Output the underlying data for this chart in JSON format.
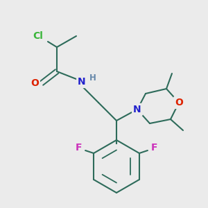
{
  "bg_color": "#ebebeb",
  "bond_color": "#2d6b5a",
  "atom_colors": {
    "Cl": "#3ab53a",
    "O": "#dd2200",
    "N": "#2222cc",
    "O_morph": "#dd2200",
    "F": "#cc33bb",
    "H": "#6688aa"
  },
  "font_size": 9.5,
  "figsize": [
    3.0,
    3.0
  ],
  "dpi": 100
}
